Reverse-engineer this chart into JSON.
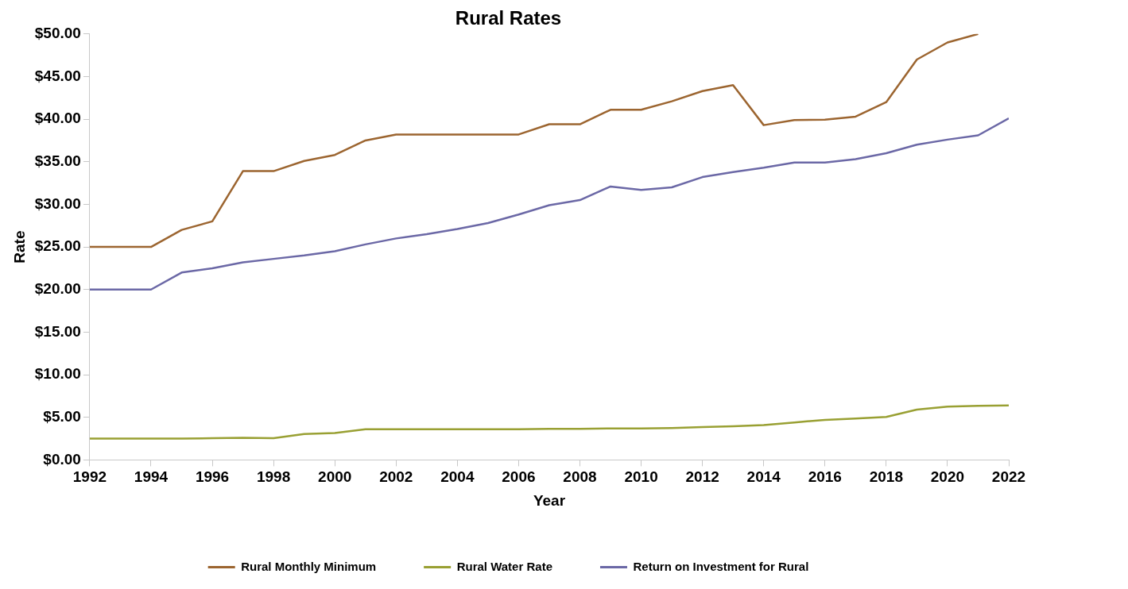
{
  "chart_data": {
    "type": "line",
    "title": "Rural Rates",
    "xlabel": "Year",
    "ylabel": "Rate",
    "x": [
      1992,
      1993,
      1994,
      1995,
      1996,
      1997,
      1998,
      1999,
      2000,
      2001,
      2002,
      2003,
      2004,
      2005,
      2006,
      2007,
      2008,
      2009,
      2010,
      2011,
      2012,
      2013,
      2014,
      2015,
      2016,
      2017,
      2018,
      2019,
      2020,
      2021,
      2022
    ],
    "xlim": [
      1992,
      2022
    ],
    "xticks": [
      1992,
      1994,
      1996,
      1998,
      2000,
      2002,
      2004,
      2006,
      2008,
      2010,
      2012,
      2014,
      2016,
      2018,
      2020,
      2022
    ],
    "ylim": [
      0,
      50
    ],
    "yticks": [
      {
        "value": 0,
        "label": "$0.00"
      },
      {
        "value": 5,
        "label": "$5.00"
      },
      {
        "value": 10,
        "label": "$10.00"
      },
      {
        "value": 15,
        "label": "$15.00"
      },
      {
        "value": 20,
        "label": "$20.00"
      },
      {
        "value": 25,
        "label": "$25.00"
      },
      {
        "value": 30,
        "label": "$30.00"
      },
      {
        "value": 35,
        "label": "$35.00"
      },
      {
        "value": 40,
        "label": "$40.00"
      },
      {
        "value": 45,
        "label": "$45.00"
      },
      {
        "value": 50,
        "label": "$50.00"
      }
    ],
    "grid": false,
    "legend": "bottom",
    "marker": "none",
    "line_style": "solid",
    "series": [
      {
        "name": "Rural Monthly Minimum",
        "color": "#9c6530",
        "values": [
          25,
          25,
          25,
          27,
          28,
          33.9,
          33.9,
          35.1,
          35.8,
          37.5,
          38.2,
          38.2,
          38.2,
          38.2,
          38.2,
          39.4,
          39.4,
          41.1,
          41.1,
          42.1,
          43.3,
          44,
          39.3,
          39.9,
          39.95,
          40.3,
          42,
          47,
          49,
          50,
          null
        ]
      },
      {
        "name": "Rural Water Rate",
        "color": "#99a033",
        "values": [
          2.5,
          2.5,
          2.5,
          2.5,
          2.55,
          2.6,
          2.55,
          3.05,
          3.15,
          3.6,
          3.6,
          3.6,
          3.6,
          3.6,
          3.6,
          3.65,
          3.65,
          3.7,
          3.7,
          3.75,
          3.85,
          3.95,
          4.1,
          4.4,
          4.7,
          4.85,
          5.05,
          5.9,
          6.25,
          6.35,
          6.4
        ]
      },
      {
        "name": "Return on Investment for Rural",
        "color": "#6b68a6",
        "values": [
          20,
          20,
          20,
          22,
          22.5,
          23.2,
          23.6,
          24,
          24.5,
          25.3,
          26,
          26.5,
          27.1,
          27.8,
          28.8,
          29.9,
          30.5,
          32.1,
          31.7,
          32,
          33.2,
          33.8,
          34.3,
          34.9,
          34.9,
          35.3,
          36,
          37,
          37.6,
          38.1,
          40.1
        ]
      }
    ]
  }
}
